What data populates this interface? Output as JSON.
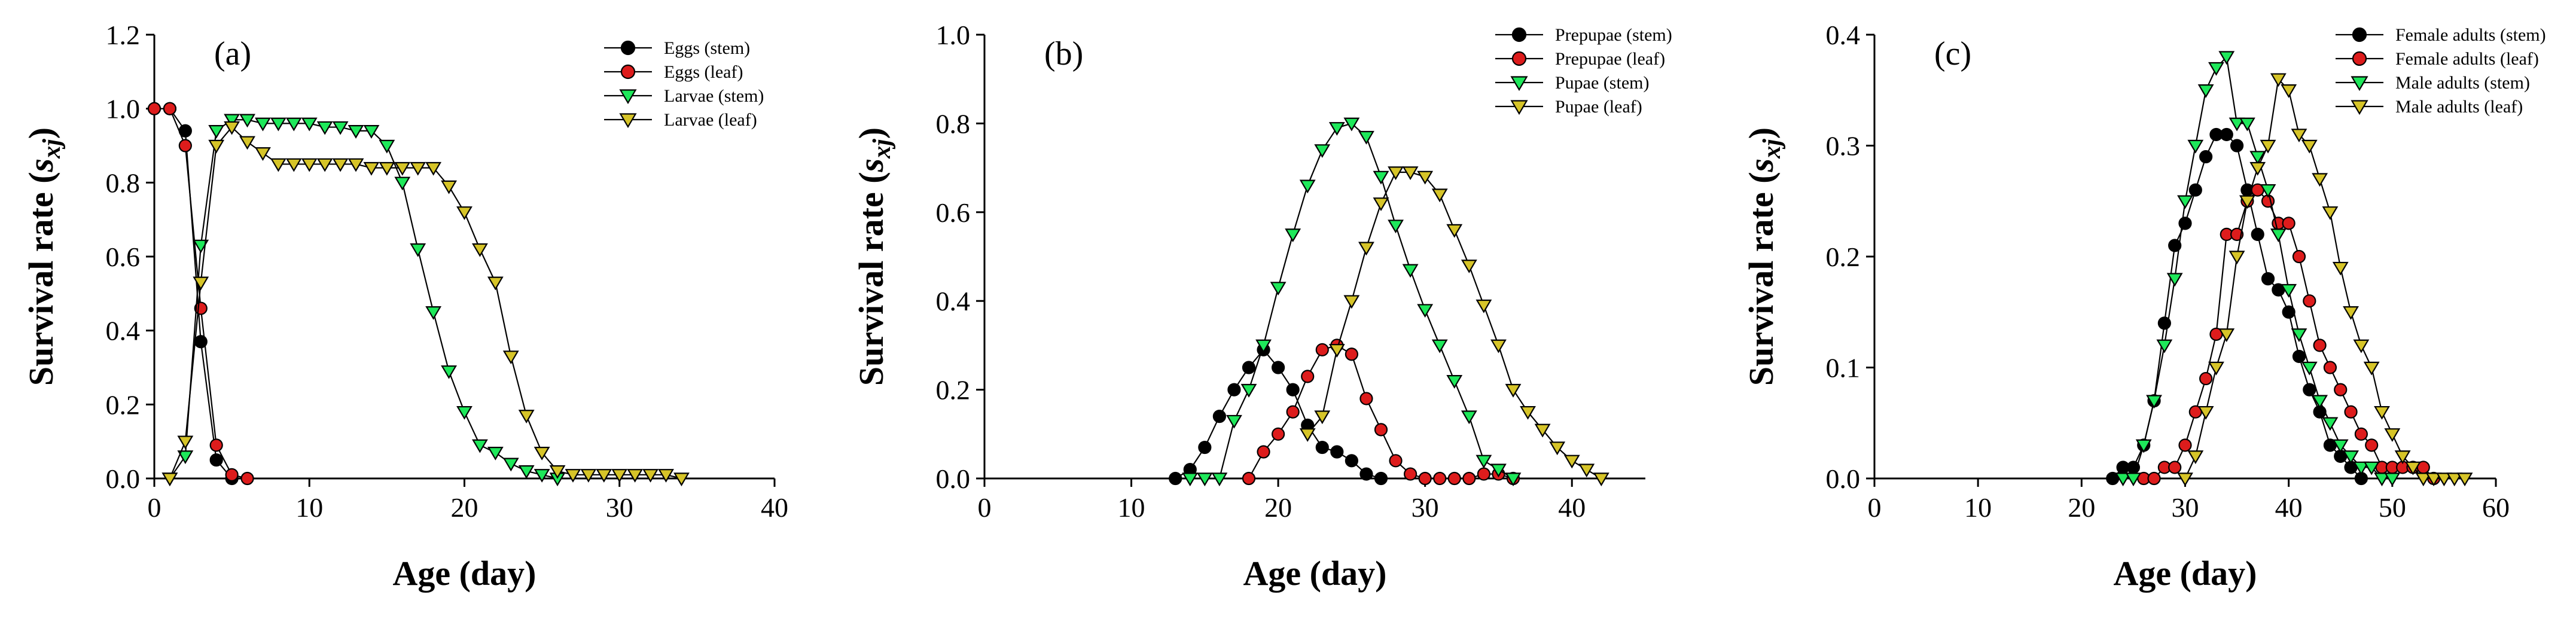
{
  "colors": {
    "stem_black": "#000000",
    "leaf_red": "#dd1c1c",
    "green": "#1ee85a",
    "yellow": "#d6c428",
    "axis": "#000000"
  },
  "chart_data": [
    {
      "type": "line",
      "panel_label": "(a)",
      "xlabel": "Age (day)",
      "ylabel_main": "Survival rate (",
      "ylabel_sub": "sxj",
      "ylabel_close": ")",
      "xlim": [
        0,
        40
      ],
      "ylim": [
        0,
        1.2
      ],
      "xticks": [
        0,
        10,
        20,
        30,
        40
      ],
      "yticks": [
        0.0,
        0.2,
        0.4,
        0.6,
        0.8,
        1.0,
        1.2
      ],
      "ytick_labels": [
        "0.0",
        "0.2",
        "0.4",
        "0.6",
        "0.8",
        "1.0",
        "1.2"
      ],
      "legend_position": "top-right",
      "series": [
        {
          "name": "Eggs (stem)",
          "marker": "circle",
          "color": "#000000",
          "x": [
            0,
            1,
            2,
            3,
            4,
            5
          ],
          "y": [
            1.0,
            1.0,
            0.94,
            0.37,
            0.05,
            0.0
          ]
        },
        {
          "name": "Eggs (leaf)",
          "marker": "circle",
          "color": "#dd1c1c",
          "x": [
            0,
            1,
            2,
            3,
            4,
            5,
            6
          ],
          "y": [
            1.0,
            1.0,
            0.9,
            0.46,
            0.09,
            0.01,
            0.0
          ]
        },
        {
          "name": "Larvae (stem)",
          "marker": "triangle-down",
          "color": "#1ee85a",
          "x": [
            1,
            2,
            3,
            4,
            5,
            6,
            7,
            8,
            9,
            10,
            11,
            12,
            13,
            14,
            15,
            16,
            17,
            18,
            19,
            20,
            21,
            22,
            23,
            24,
            25,
            26
          ],
          "y": [
            0.0,
            0.06,
            0.63,
            0.94,
            0.97,
            0.97,
            0.96,
            0.96,
            0.96,
            0.96,
            0.95,
            0.95,
            0.94,
            0.94,
            0.9,
            0.8,
            0.62,
            0.45,
            0.29,
            0.18,
            0.09,
            0.07,
            0.04,
            0.02,
            0.01,
            0.0
          ]
        },
        {
          "name": "Larvae (leaf)",
          "marker": "triangle-down",
          "color": "#d6c428",
          "x": [
            1,
            2,
            3,
            4,
            5,
            6,
            7,
            8,
            9,
            10,
            11,
            12,
            13,
            14,
            15,
            16,
            17,
            18,
            19,
            20,
            21,
            22,
            23,
            24,
            25,
            26,
            27,
            28,
            29,
            30,
            31,
            32,
            33,
            34
          ],
          "y": [
            0.0,
            0.1,
            0.53,
            0.9,
            0.95,
            0.91,
            0.88,
            0.85,
            0.85,
            0.85,
            0.85,
            0.85,
            0.85,
            0.84,
            0.84,
            0.84,
            0.84,
            0.84,
            0.79,
            0.72,
            0.62,
            0.53,
            0.33,
            0.17,
            0.07,
            0.02,
            0.01,
            0.01,
            0.01,
            0.01,
            0.01,
            0.01,
            0.01,
            0.0
          ]
        }
      ]
    },
    {
      "type": "line",
      "panel_label": "(b)",
      "xlabel": "Age (day)",
      "ylabel_main": "Survival rate (",
      "ylabel_sub": "sxj",
      "ylabel_close": ")",
      "xlim": [
        0,
        45
      ],
      "ylim": [
        0,
        1.0
      ],
      "xticks": [
        0,
        10,
        20,
        30,
        40
      ],
      "yticks": [
        0.0,
        0.2,
        0.4,
        0.6,
        0.8,
        1.0
      ],
      "ytick_labels": [
        "0.0",
        "0.2",
        "0.4",
        "0.6",
        "0.8",
        "1.0"
      ],
      "legend_position": "top-right",
      "series": [
        {
          "name": "Prepupae (stem)",
          "marker": "circle",
          "color": "#000000",
          "x": [
            13,
            14,
            15,
            16,
            17,
            18,
            19,
            20,
            21,
            22,
            23,
            24,
            25,
            26,
            27
          ],
          "y": [
            0.0,
            0.02,
            0.07,
            0.14,
            0.2,
            0.25,
            0.29,
            0.25,
            0.2,
            0.12,
            0.07,
            0.06,
            0.04,
            0.01,
            0.0
          ]
        },
        {
          "name": "Prepupae (leaf)",
          "marker": "circle",
          "color": "#dd1c1c",
          "x": [
            18,
            19,
            20,
            21,
            22,
            23,
            24,
            25,
            26,
            27,
            28,
            29,
            30,
            31,
            32,
            33,
            34,
            35,
            36
          ],
          "y": [
            0.0,
            0.06,
            0.1,
            0.15,
            0.23,
            0.29,
            0.3,
            0.28,
            0.18,
            0.11,
            0.04,
            0.01,
            0.0,
            0.0,
            0.0,
            0.0,
            0.01,
            0.01,
            0.0
          ]
        },
        {
          "name": "Pupae (stem)",
          "marker": "triangle-down",
          "color": "#1ee85a",
          "x": [
            14,
            15,
            16,
            17,
            18,
            19,
            20,
            21,
            22,
            23,
            24,
            25,
            26,
            27,
            28,
            29,
            30,
            31,
            32,
            33,
            34,
            35,
            36
          ],
          "y": [
            0.0,
            0.0,
            0.0,
            0.13,
            0.2,
            0.3,
            0.43,
            0.55,
            0.66,
            0.74,
            0.79,
            0.8,
            0.77,
            0.68,
            0.57,
            0.47,
            0.38,
            0.3,
            0.22,
            0.14,
            0.04,
            0.02,
            0.0
          ]
        },
        {
          "name": "Pupae (leaf)",
          "marker": "triangle-down",
          "color": "#d6c428",
          "x": [
            22,
            23,
            24,
            25,
            26,
            27,
            28,
            29,
            30,
            31,
            32,
            33,
            34,
            35,
            36,
            37,
            38,
            39,
            40,
            41,
            42
          ],
          "y": [
            0.1,
            0.14,
            0.29,
            0.4,
            0.52,
            0.62,
            0.69,
            0.69,
            0.68,
            0.64,
            0.56,
            0.48,
            0.39,
            0.3,
            0.2,
            0.15,
            0.11,
            0.07,
            0.04,
            0.02,
            0.0
          ]
        }
      ]
    },
    {
      "type": "line",
      "panel_label": "(c)",
      "xlabel": "Age (day)",
      "ylabel_main": "Survival rate (",
      "ylabel_sub": "sxj",
      "ylabel_close": ")",
      "xlim": [
        0,
        60
      ],
      "ylim": [
        0,
        0.4
      ],
      "xticks": [
        0,
        10,
        20,
        30,
        40,
        50,
        60
      ],
      "yticks": [
        0.0,
        0.1,
        0.2,
        0.3,
        0.4
      ],
      "ytick_labels": [
        "0.0",
        "0.1",
        "0.2",
        "0.3",
        "0.4"
      ],
      "legend_position": "top-right",
      "series": [
        {
          "name": "Female adults (stem)",
          "marker": "circle",
          "color": "#000000",
          "x": [
            23,
            24,
            25,
            26,
            27,
            28,
            29,
            30,
            31,
            32,
            33,
            34,
            35,
            36,
            37,
            38,
            39,
            40,
            41,
            42,
            43,
            44,
            45,
            46,
            47
          ],
          "y": [
            0.0,
            0.01,
            0.01,
            0.03,
            0.07,
            0.14,
            0.21,
            0.23,
            0.26,
            0.29,
            0.31,
            0.31,
            0.3,
            0.26,
            0.22,
            0.18,
            0.17,
            0.15,
            0.11,
            0.08,
            0.06,
            0.03,
            0.02,
            0.01,
            0.0
          ]
        },
        {
          "name": "Female adults (leaf)",
          "marker": "circle",
          "color": "#dd1c1c",
          "x": [
            26,
            27,
            28,
            29,
            30,
            31,
            32,
            33,
            34,
            35,
            36,
            37,
            38,
            39,
            40,
            41,
            42,
            43,
            44,
            45,
            46,
            47,
            48,
            49,
            50,
            51,
            52,
            53,
            54
          ],
          "y": [
            0.0,
            0.0,
            0.01,
            0.01,
            0.03,
            0.06,
            0.09,
            0.13,
            0.22,
            0.22,
            0.25,
            0.26,
            0.25,
            0.23,
            0.23,
            0.2,
            0.16,
            0.12,
            0.1,
            0.08,
            0.06,
            0.04,
            0.03,
            0.01,
            0.01,
            0.01,
            0.01,
            0.01,
            0.0
          ]
        },
        {
          "name": "Male adults (stem)",
          "marker": "triangle-down",
          "color": "#1ee85a",
          "x": [
            24,
            25,
            26,
            27,
            28,
            29,
            30,
            31,
            32,
            33,
            34,
            35,
            36,
            37,
            38,
            39,
            40,
            41,
            42,
            43,
            44,
            45,
            46,
            47,
            48,
            49,
            50
          ],
          "y": [
            0.0,
            0.0,
            0.03,
            0.07,
            0.12,
            0.18,
            0.25,
            0.3,
            0.35,
            0.37,
            0.38,
            0.32,
            0.32,
            0.29,
            0.26,
            0.22,
            0.17,
            0.13,
            0.1,
            0.07,
            0.05,
            0.03,
            0.02,
            0.01,
            0.01,
            0.0,
            0.0
          ]
        },
        {
          "name": "Male adults (leaf)",
          "marker": "triangle-down",
          "color": "#d6c428",
          "x": [
            30,
            31,
            32,
            33,
            34,
            35,
            36,
            37,
            38,
            39,
            40,
            41,
            42,
            43,
            44,
            45,
            46,
            47,
            48,
            49,
            50,
            51,
            52,
            53,
            54,
            55,
            56,
            57
          ],
          "y": [
            0.0,
            0.02,
            0.06,
            0.1,
            0.13,
            0.2,
            0.25,
            0.28,
            0.3,
            0.36,
            0.35,
            0.31,
            0.3,
            0.27,
            0.24,
            0.19,
            0.15,
            0.12,
            0.1,
            0.06,
            0.04,
            0.02,
            0.01,
            0.0,
            0.0,
            0.0,
            0.0,
            0.0
          ]
        }
      ]
    }
  ]
}
